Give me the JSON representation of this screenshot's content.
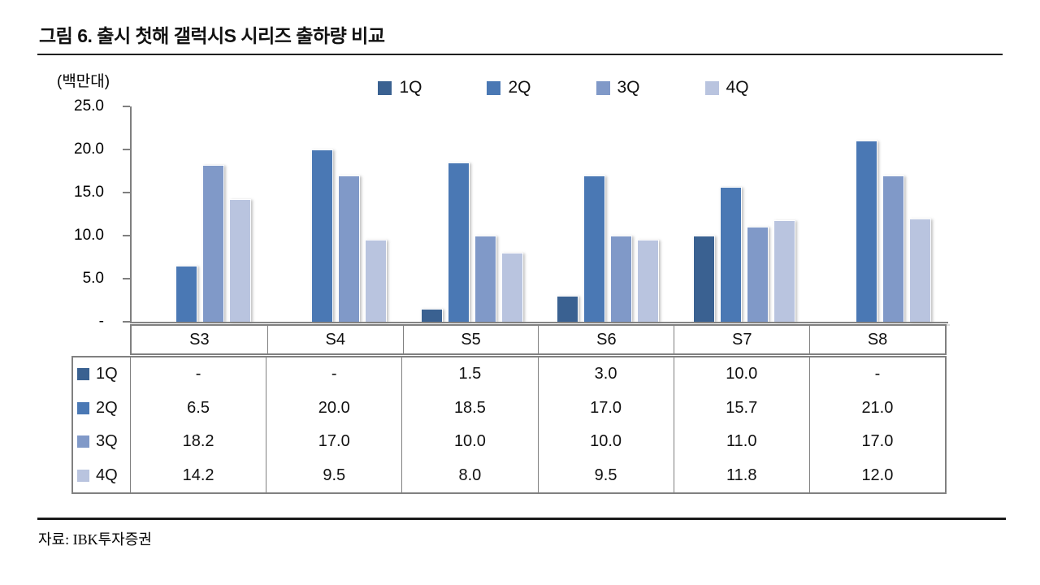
{
  "title": "그림 6. 출시 첫해 갤럭시S 시리즈 출하량 비교",
  "unit_label": "(백만대)",
  "source": "자료: IBK투자증권",
  "colors": {
    "axis": "#7F7F7F",
    "table_border": "#808080"
  },
  "chart_data": {
    "type": "bar",
    "title": "그림 6. 출시 첫해 갤럭시S 시리즈 출하량 비교",
    "ylabel": "(백만대)",
    "xlabel": "",
    "categories": [
      "S3",
      "S4",
      "S5",
      "S6",
      "S7",
      "S8"
    ],
    "series": [
      {
        "name": "1Q",
        "color": "#3A6191",
        "values": [
          null,
          null,
          1.5,
          3.0,
          10.0,
          null
        ]
      },
      {
        "name": "2Q",
        "color": "#4A78B4",
        "values": [
          6.5,
          20.0,
          18.5,
          17.0,
          15.7,
          21.0
        ]
      },
      {
        "name": "3Q",
        "color": "#8099C8",
        "values": [
          18.2,
          17.0,
          10.0,
          10.0,
          11.0,
          17.0
        ]
      },
      {
        "name": "4Q",
        "color": "#B9C4DF",
        "values": [
          14.2,
          9.5,
          8.0,
          9.5,
          11.8,
          12.0
        ]
      }
    ],
    "ylim": [
      0,
      25
    ],
    "yticks": [
      "25.0",
      "20.0",
      "15.0",
      "10.0",
      "5.0",
      "-"
    ],
    "ytick_values": [
      25,
      20,
      15,
      10,
      5,
      0
    ],
    "grid": false,
    "legend_position": "top"
  },
  "table": {
    "columns": [
      "S3",
      "S4",
      "S5",
      "S6",
      "S7",
      "S8"
    ],
    "rows": [
      {
        "label": "1Q",
        "values": [
          "-",
          "-",
          "1.5",
          "3.0",
          "10.0",
          "-"
        ]
      },
      {
        "label": "2Q",
        "values": [
          "6.5",
          "20.0",
          "18.5",
          "17.0",
          "15.7",
          "21.0"
        ]
      },
      {
        "label": "3Q",
        "values": [
          "18.2",
          "17.0",
          "10.0",
          "10.0",
          "11.0",
          "17.0"
        ]
      },
      {
        "label": "4Q",
        "values": [
          "14.2",
          "9.5",
          "8.0",
          "9.5",
          "11.8",
          "12.0"
        ]
      }
    ]
  }
}
